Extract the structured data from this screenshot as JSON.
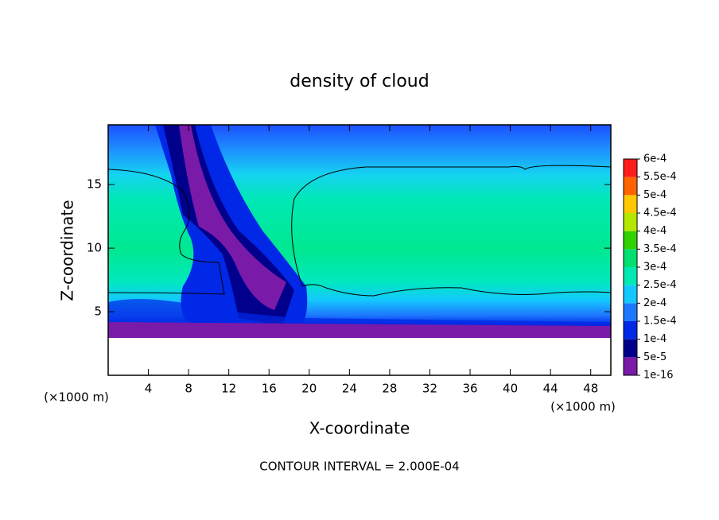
{
  "chart_data": {
    "type": "contour",
    "title": "density of cloud",
    "xlabel": "X-coordinate",
    "ylabel": "Z-coordinate",
    "x_unit_label_left": "(×1000 m)",
    "x_unit_label_right": "(×1000 m)",
    "footer": "CONTOUR INTERVAL = 2.000E-04",
    "xlim": [
      0,
      50
    ],
    "ylim": [
      0,
      19.7
    ],
    "xticks": [
      4,
      8,
      12,
      16,
      20,
      24,
      28,
      32,
      36,
      40,
      44,
      48
    ],
    "yticks": [
      5,
      10,
      15
    ],
    "colorbar": {
      "levels": [
        {
          "value": 1e-16,
          "label": "1e-16"
        },
        {
          "value": 5e-05,
          "label": "5e-5"
        },
        {
          "value": 0.0001,
          "label": "1e-4"
        },
        {
          "value": 0.00015,
          "label": "1.5e-4"
        },
        {
          "value": 0.0002,
          "label": "2e-4"
        },
        {
          "value": 0.00025,
          "label": "2.5e-4"
        },
        {
          "value": 0.0003,
          "label": "3e-4"
        },
        {
          "value": 0.00035,
          "label": "3.5e-4"
        },
        {
          "value": 0.0004,
          "label": "4e-4"
        },
        {
          "value": 0.00045,
          "label": "4.5e-4"
        },
        {
          "value": 0.0005,
          "label": "5e-4"
        },
        {
          "value": 0.00055,
          "label": "5.5e-4"
        },
        {
          "value": 0.0006,
          "label": "6e-4"
        }
      ],
      "colors": [
        "#7a1aa8",
        "#00008c",
        "#0028e6",
        "#1e78ff",
        "#14c8ff",
        "#00e8b4",
        "#00e070",
        "#30d200",
        "#b4e600",
        "#ffc800",
        "#ff6400",
        "#ff1e1e",
        "#ff8c8c"
      ]
    }
  }
}
